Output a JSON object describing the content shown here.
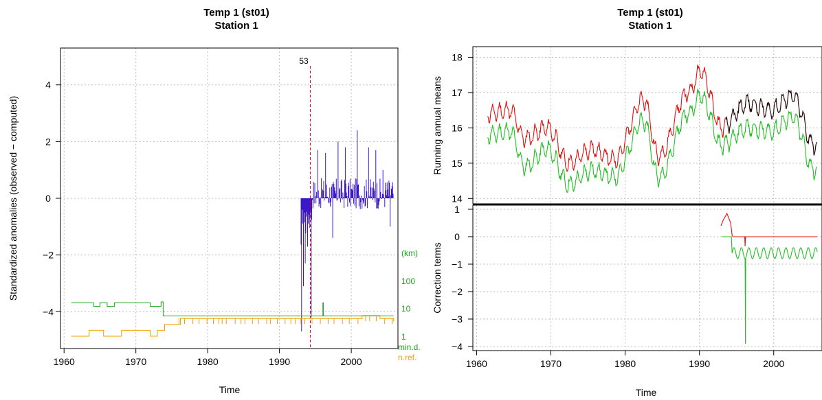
{
  "colors": {
    "anomaly": "#3a18c8",
    "break": "#d4002c",
    "distance": "#1aa31a",
    "nref": "#f0a000",
    "raw": "#e01010",
    "homog": "#20c020",
    "dark": "#2a0a0a"
  },
  "left_panel": {
    "title_line1": "Temp   1 (st01)",
    "title_line2": "Station 1",
    "xlabel": "Time",
    "ylabel": "Standardized anomalies (observed − computed)",
    "break_label": "53",
    "km_label": "(km)",
    "km_ticks": [
      "100",
      "10",
      "1"
    ],
    "min_d_label": "min.d.",
    "n_ref_label": "n.ref."
  },
  "right_panel": {
    "title_line1": "Temp   1 (st01)",
    "title_line2": "Station 1",
    "xlabel": "Time",
    "top_ylabel": "Running annual means",
    "bottom_ylabel": "Correction terms"
  },
  "chart_data": [
    {
      "type": "bar",
      "title": "Temp   1 (st01)",
      "subtitle": "Station 1",
      "xlabel": "Time",
      "ylabel": "Standardized anomalies (observed − computed)",
      "xlim": [
        1959.5,
        2006.5
      ],
      "ylim": [
        -5.3,
        5.3
      ],
      "x_ticks": [
        1960,
        1970,
        1980,
        1990,
        2000
      ],
      "y_ticks": [
        -4,
        -2,
        0,
        2,
        4
      ],
      "break_year": 1994.3,
      "anomaly_range": [
        1993.0,
        2005.9
      ],
      "anomaly_peaks": [
        {
          "x": 1993.1,
          "y": -4.7
        },
        {
          "x": 1993.3,
          "y": -3.1
        },
        {
          "x": 1993.6,
          "y": -2.3
        },
        {
          "x": 1994.4,
          "y": -4.2
        },
        {
          "x": 1995.3,
          "y": 1.7
        },
        {
          "x": 1996.4,
          "y": 1.6
        },
        {
          "x": 1997.4,
          "y": -1.4
        },
        {
          "x": 1998.2,
          "y": 2.0
        },
        {
          "x": 1999.2,
          "y": 1.8
        },
        {
          "x": 2000.8,
          "y": 2.4
        },
        {
          "x": 2002.4,
          "y": 1.8
        },
        {
          "x": 2003.4,
          "y": 1.7
        },
        {
          "x": 2004.4,
          "y": 1.0
        },
        {
          "x": 2005.4,
          "y": -1.0
        },
        {
          "x": 2005.9,
          "y": 0.8
        }
      ],
      "distance_km_series": {
        "name": "min.d.",
        "points": [
          [
            1961,
            30
          ],
          [
            1964,
            30
          ],
          [
            1964.1,
            22
          ],
          [
            1965,
            30
          ],
          [
            1966,
            22
          ],
          [
            1967,
            30
          ],
          [
            1970,
            30
          ],
          [
            1972,
            22
          ],
          [
            1973,
            22
          ],
          [
            1973.5,
            32
          ],
          [
            1973.8,
            10
          ],
          [
            1996,
            10
          ],
          [
            1996.05,
            30
          ],
          [
            1996.1,
            10
          ],
          [
            2005.9,
            10
          ]
        ]
      },
      "n_ref_series": {
        "name": "n.ref.",
        "points": [
          [
            1961,
            1
          ],
          [
            1963,
            1
          ],
          [
            1963.5,
            2
          ],
          [
            1965,
            2
          ],
          [
            1965.5,
            1
          ],
          [
            1967,
            1
          ],
          [
            1968,
            2
          ],
          [
            1970,
            2
          ],
          [
            1972,
            1
          ],
          [
            1973,
            2
          ],
          [
            1974,
            3
          ],
          [
            1976,
            3
          ],
          [
            1976.2,
            4
          ],
          [
            1980,
            4
          ],
          [
            1986,
            4
          ],
          [
            1990,
            4
          ],
          [
            1996,
            4
          ],
          [
            2000,
            4
          ],
          [
            2001.5,
            4.5
          ],
          [
            2004,
            4
          ],
          [
            2005.9,
            3.5
          ]
        ]
      }
    },
    {
      "type": "line",
      "title": "Temp   1 (st01)",
      "subtitle": "Station 1",
      "xlabel": "Time",
      "ylabel": "Running annual means",
      "xlim": [
        1959.5,
        2006.5
      ],
      "ylim": [
        13.85,
        18.3
      ],
      "x_ticks": [
        1960,
        1970,
        1980,
        1990,
        2000
      ],
      "y_ticks": [
        14,
        15,
        16,
        17,
        18
      ],
      "year_markers": [
        {
          "x": 1961.5,
          "raw": 16.4,
          "homog": 15.8
        },
        {
          "x": 1964.5,
          "raw": 16.5,
          "homog": 15.9
        },
        {
          "x": 1966.5,
          "raw": 15.7,
          "homog": 14.9
        },
        {
          "x": 1969.5,
          "raw": 16.0,
          "homog": 15.4
        },
        {
          "x": 1972.5,
          "raw": 15.0,
          "homog": 14.4
        },
        {
          "x": 1975.5,
          "raw": 15.4,
          "homog": 14.8
        },
        {
          "x": 1978.5,
          "raw": 15.1,
          "homog": 14.6
        },
        {
          "x": 1982.5,
          "raw": 16.8,
          "homog": 16.2
        },
        {
          "x": 1984.5,
          "raw": 15.2,
          "homog": 14.6
        },
        {
          "x": 1988.5,
          "raw": 17.0,
          "homog": 16.4
        },
        {
          "x": 1990.2,
          "raw": 17.6,
          "homog": 16.9
        },
        {
          "x": 1993.0,
          "raw": 16.0,
          "homog": 15.5
        },
        {
          "x": 1996.5,
          "raw": 16.7,
          "homog": 16.0
        },
        {
          "x": 1999.5,
          "raw": 16.5,
          "homog": 15.9
        },
        {
          "x": 2002.5,
          "raw": 16.9,
          "homog": 16.3
        },
        {
          "x": 2005.5,
          "raw": 15.5,
          "homog": 14.8
        }
      ],
      "series_notes": "red: raw; green: homogenized; dark: raw after the break (1993.5–2005.9)"
    },
    {
      "type": "line",
      "xlabel": "Time",
      "ylabel": "Correction terms",
      "xlim": [
        1959.5,
        2006.5
      ],
      "ylim": [
        -4.15,
        1.15
      ],
      "x_ticks": [
        1960,
        1970,
        1980,
        1990,
        2000
      ],
      "y_ticks": [
        -4,
        -3,
        -2,
        -1,
        0,
        1
      ],
      "red_series": {
        "points": [
          [
            1992.9,
            0.4
          ],
          [
            1993.2,
            0.6
          ],
          [
            1993.7,
            0.85
          ],
          [
            1994.2,
            0.5
          ],
          [
            1994.4,
            0.05
          ],
          [
            1994.5,
            0.0
          ],
          [
            1996.1,
            0.0
          ],
          [
            1996.15,
            -0.35
          ],
          [
            1996.2,
            0.0
          ],
          [
            2005.9,
            0.0
          ]
        ]
      },
      "green_series": {
        "points": [
          [
            1993.0,
            0.0
          ],
          [
            1994.3,
            0.0
          ],
          [
            1994.4,
            -0.6
          ],
          [
            2005.9,
            -0.6
          ]
        ],
        "seasonal_amplitude": 0.2,
        "spike": {
          "x": 1996.2,
          "y": -3.9
        }
      }
    }
  ]
}
